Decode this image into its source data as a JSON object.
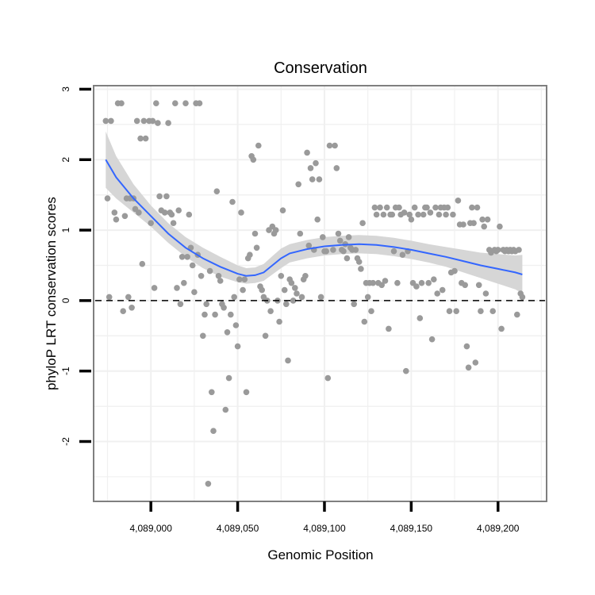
{
  "chart_data": {
    "type": "scatter",
    "title": "Conservation",
    "xlabel": "Genomic Position",
    "ylabel": "phyloP LRT conservation scores",
    "xlim": [
      4088967,
      4089228
    ],
    "ylim": [
      -2.85,
      3.05
    ],
    "x_ticks": [
      {
        "value": 4089000,
        "label": "4,089,000"
      },
      {
        "value": 4089050,
        "label": "4,089,050"
      },
      {
        "value": 4089100,
        "label": "4,089,100"
      },
      {
        "value": 4089150,
        "label": "4,089,150"
      },
      {
        "value": 4089200,
        "label": "4,089,200"
      }
    ],
    "y_ticks": [
      {
        "value": 3,
        "label": "3"
      },
      {
        "value": 2,
        "label": "2"
      },
      {
        "value": 1,
        "label": "1"
      },
      {
        "value": 0,
        "label": "0"
      },
      {
        "value": -1,
        "label": "-1"
      },
      {
        "value": -2,
        "label": "-2"
      }
    ],
    "grid": true,
    "reference_line": {
      "y": 0,
      "style": "dashed",
      "color": "#000000"
    },
    "colors": {
      "points": "#9a9a9a",
      "smooth_line": "#3366ff",
      "ribbon": "#d6d6d6",
      "panel_border": "#7f7f7f",
      "grid": "#f0f0f0"
    },
    "series": [
      {
        "name": "phyloP scores",
        "points": [
          [
            4088974,
            2.55
          ],
          [
            4088975,
            1.45
          ],
          [
            4088977,
            2.55
          ],
          [
            4088976,
            0.05
          ],
          [
            4088979,
            1.25
          ],
          [
            4088980,
            1.15
          ],
          [
            4088981,
            2.8
          ],
          [
            4088983,
            2.8
          ],
          [
            4088984,
            -0.15
          ],
          [
            4088985,
            1.2
          ],
          [
            4088986,
            1.45
          ],
          [
            4088987,
            0.05
          ],
          [
            4088988,
            1.45
          ],
          [
            4088989,
            -0.1
          ],
          [
            4088990,
            1.45
          ],
          [
            4088991,
            1.3
          ],
          [
            4088992,
            2.55
          ],
          [
            4088993,
            1.25
          ],
          [
            4088994,
            2.3
          ],
          [
            4088995,
            0.52
          ],
          [
            4088996,
            2.55
          ],
          [
            4088997,
            2.3
          ],
          [
            4088999,
            2.55
          ],
          [
            4089000,
            1.1
          ],
          [
            4089001,
            2.55
          ],
          [
            4089002,
            0.18
          ],
          [
            4089003,
            2.8
          ],
          [
            4089004,
            2.52
          ],
          [
            4089005,
            1.48
          ],
          [
            4089006,
            1.28
          ],
          [
            4089008,
            1.25
          ],
          [
            4089009,
            1.48
          ],
          [
            4089010,
            2.52
          ],
          [
            4089011,
            1.25
          ],
          [
            4089012,
            1.22
          ],
          [
            4089013,
            1.1
          ],
          [
            4089014,
            2.8
          ],
          [
            4089015,
            0.18
          ],
          [
            4089016,
            1.28
          ],
          [
            4089017,
            -0.05
          ],
          [
            4089018,
            0.62
          ],
          [
            4089019,
            0.25
          ],
          [
            4089020,
            2.8
          ],
          [
            4089021,
            0.62
          ],
          [
            4089022,
            1.22
          ],
          [
            4089023,
            0.75
          ],
          [
            4089024,
            0.5
          ],
          [
            4089025,
            0.12
          ],
          [
            4089026,
            2.8
          ],
          [
            4089027,
            0.65
          ],
          [
            4089028,
            2.8
          ],
          [
            4089029,
            0.35
          ],
          [
            4089030,
            -0.5
          ],
          [
            4089031,
            -0.2
          ],
          [
            4089032,
            -0.05
          ],
          [
            4089033,
            -2.6
          ],
          [
            4089034,
            0.42
          ],
          [
            4089035,
            -1.3
          ],
          [
            4089036,
            -1.85
          ],
          [
            4089037,
            -0.2
          ],
          [
            4089038,
            1.55
          ],
          [
            4089039,
            0.35
          ],
          [
            4089040,
            0.28
          ],
          [
            4089041,
            -0.05
          ],
          [
            4089042,
            -0.1
          ],
          [
            4089043,
            -1.55
          ],
          [
            4089044,
            -0.45
          ],
          [
            4089045,
            -1.1
          ],
          [
            4089046,
            -0.2
          ],
          [
            4089047,
            1.4
          ],
          [
            4089048,
            0.05
          ],
          [
            4089049,
            -0.35
          ],
          [
            4089050,
            -0.65
          ],
          [
            4089051,
            0.3
          ],
          [
            4089052,
            1.25
          ],
          [
            4089053,
            0.15
          ],
          [
            4089054,
            0.3
          ],
          [
            4089055,
            -1.3
          ],
          [
            4089056,
            0.6
          ],
          [
            4089057,
            0.65
          ],
          [
            4089058,
            2.05
          ],
          [
            4089059,
            2.0
          ],
          [
            4089060,
            0.95
          ],
          [
            4089061,
            0.75
          ],
          [
            4089062,
            2.2
          ],
          [
            4089063,
            0.2
          ],
          [
            4089064,
            0.15
          ],
          [
            4089065,
            0.05
          ],
          [
            4089066,
            -0.5
          ],
          [
            4089067,
            0.0
          ],
          [
            4089068,
            1.0
          ],
          [
            4089069,
            -0.15
          ],
          [
            4089070,
            1.05
          ],
          [
            4089071,
            0.95
          ],
          [
            4089072,
            1.0
          ],
          [
            4089073,
            0.0
          ],
          [
            4089074,
            -0.3
          ],
          [
            4089075,
            0.35
          ],
          [
            4089076,
            1.28
          ],
          [
            4089077,
            0.15
          ],
          [
            4089078,
            -0.05
          ],
          [
            4089079,
            -0.85
          ],
          [
            4089080,
            0.3
          ],
          [
            4089081,
            0.25
          ],
          [
            4089082,
            0.0
          ],
          [
            4089083,
            0.18
          ],
          [
            4089084,
            0.1
          ],
          [
            4089085,
            1.65
          ],
          [
            4089086,
            0.95
          ],
          [
            4089087,
            0.05
          ],
          [
            4089088,
            0.3
          ],
          [
            4089089,
            0.35
          ],
          [
            4089090,
            2.1
          ],
          [
            4089091,
            0.78
          ],
          [
            4089092,
            1.88
          ],
          [
            4089093,
            1.72
          ],
          [
            4089094,
            0.72
          ],
          [
            4089095,
            1.95
          ],
          [
            4089096,
            1.15
          ],
          [
            4089097,
            1.72
          ],
          [
            4089098,
            0.05
          ],
          [
            4089099,
            0.9
          ],
          [
            4089100,
            0.7
          ],
          [
            4089101,
            0.7
          ],
          [
            4089102,
            -1.1
          ],
          [
            4089103,
            2.2
          ],
          [
            4089105,
            0.72
          ],
          [
            4089106,
            2.2
          ],
          [
            4089107,
            1.88
          ],
          [
            4089108,
            0.95
          ],
          [
            4089109,
            0.85
          ],
          [
            4089110,
            0.72
          ],
          [
            4089111,
            0.7
          ],
          [
            4089112,
            0.8
          ],
          [
            4089113,
            0.6
          ],
          [
            4089114,
            0.9
          ],
          [
            4089115,
            0.75
          ],
          [
            4089116,
            0.72
          ],
          [
            4089117,
            -0.05
          ],
          [
            4089118,
            0.72
          ],
          [
            4089119,
            0.6
          ],
          [
            4089120,
            0.55
          ],
          [
            4089121,
            0.45
          ],
          [
            4089122,
            1.1
          ],
          [
            4089123,
            -0.3
          ],
          [
            4089124,
            0.25
          ],
          [
            4089125,
            0.05
          ],
          [
            4089126,
            0.25
          ],
          [
            4089127,
            -0.15
          ],
          [
            4089128,
            0.25
          ],
          [
            4089129,
            1.32
          ],
          [
            4089130,
            1.22
          ],
          [
            4089131,
            0.25
          ],
          [
            4089132,
            1.32
          ],
          [
            4089133,
            0.22
          ],
          [
            4089134,
            1.22
          ],
          [
            4089135,
            0.28
          ],
          [
            4089136,
            1.32
          ],
          [
            4089137,
            -0.4
          ],
          [
            4089138,
            1.22
          ],
          [
            4089139,
            1.22
          ],
          [
            4089140,
            0.7
          ],
          [
            4089141,
            1.32
          ],
          [
            4089142,
            0.25
          ],
          [
            4089143,
            1.32
          ],
          [
            4089144,
            1.22
          ],
          [
            4089145,
            0.65
          ],
          [
            4089146,
            1.25
          ],
          [
            4089147,
            -1.0
          ],
          [
            4089148,
            0.7
          ],
          [
            4089149,
            1.22
          ],
          [
            4089150,
            1.15
          ],
          [
            4089151,
            0.25
          ],
          [
            4089152,
            1.32
          ],
          [
            4089153,
            0.2
          ],
          [
            4089154,
            1.22
          ],
          [
            4089155,
            -0.25
          ],
          [
            4089156,
            0.25
          ],
          [
            4089157,
            1.22
          ],
          [
            4089158,
            1.32
          ],
          [
            4089159,
            1.32
          ],
          [
            4089160,
            0.25
          ],
          [
            4089161,
            1.25
          ],
          [
            4089162,
            -0.55
          ],
          [
            4089163,
            0.3
          ],
          [
            4089164,
            1.32
          ],
          [
            4089165,
            0.1
          ],
          [
            4089166,
            1.22
          ],
          [
            4089167,
            1.32
          ],
          [
            4089168,
            0.15
          ],
          [
            4089169,
            1.32
          ],
          [
            4089170,
            1.22
          ],
          [
            4089171,
            1.32
          ],
          [
            4089172,
            -0.15
          ],
          [
            4089173,
            0.4
          ],
          [
            4089174,
            1.22
          ],
          [
            4089175,
            0.42
          ],
          [
            4089176,
            -0.15
          ],
          [
            4089177,
            1.42
          ],
          [
            4089178,
            1.08
          ],
          [
            4089179,
            0.25
          ],
          [
            4089180,
            1.08
          ],
          [
            4089181,
            0.22
          ],
          [
            4089182,
            -0.65
          ],
          [
            4089183,
            -0.95
          ],
          [
            4089184,
            1.1
          ],
          [
            4089185,
            1.32
          ],
          [
            4089186,
            1.1
          ],
          [
            4089187,
            -0.88
          ],
          [
            4089188,
            1.32
          ],
          [
            4089189,
            0.22
          ],
          [
            4089190,
            -0.15
          ],
          [
            4089191,
            1.15
          ],
          [
            4089192,
            1.05
          ],
          [
            4089193,
            0.1
          ],
          [
            4089194,
            1.15
          ],
          [
            4089195,
            0.72
          ],
          [
            4089196,
            0.68
          ],
          [
            4089197,
            -0.15
          ],
          [
            4089198,
            0.72
          ],
          [
            4089199,
            0.7
          ],
          [
            4089200,
            0.72
          ],
          [
            4089201,
            1.05
          ],
          [
            4089202,
            -0.4
          ],
          [
            4089203,
            0.72
          ],
          [
            4089204,
            0.7
          ],
          [
            4089205,
            0.72
          ],
          [
            4089206,
            0.7
          ],
          [
            4089207,
            0.72
          ],
          [
            4089208,
            0.7
          ],
          [
            4089209,
            0.72
          ],
          [
            4089210,
            0.7
          ],
          [
            4089211,
            -0.2
          ],
          [
            4089212,
            0.72
          ],
          [
            4089213,
            0.1
          ],
          [
            4089214,
            0.05
          ]
        ]
      },
      {
        "name": "loess fit",
        "points": [
          [
            4088974,
            2.0
          ],
          [
            4088980,
            1.75
          ],
          [
            4088990,
            1.45
          ],
          [
            4089000,
            1.2
          ],
          [
            4089010,
            0.95
          ],
          [
            4089020,
            0.75
          ],
          [
            4089030,
            0.6
          ],
          [
            4089040,
            0.48
          ],
          [
            4089050,
            0.38
          ],
          [
            4089055,
            0.35
          ],
          [
            4089060,
            0.36
          ],
          [
            4089065,
            0.4
          ],
          [
            4089070,
            0.5
          ],
          [
            4089075,
            0.6
          ],
          [
            4089080,
            0.67
          ],
          [
            4089090,
            0.73
          ],
          [
            4089100,
            0.77
          ],
          [
            4089110,
            0.79
          ],
          [
            4089120,
            0.8
          ],
          [
            4089130,
            0.79
          ],
          [
            4089140,
            0.76
          ],
          [
            4089150,
            0.72
          ],
          [
            4089160,
            0.67
          ],
          [
            4089170,
            0.62
          ],
          [
            4089180,
            0.56
          ],
          [
            4089190,
            0.5
          ],
          [
            4089200,
            0.45
          ],
          [
            4089210,
            0.4
          ],
          [
            4089214,
            0.37
          ]
        ],
        "ci_upper": [
          2.4,
          2.05,
          1.65,
          1.35,
          1.1,
          0.9,
          0.75,
          0.62,
          0.5,
          0.46,
          0.47,
          0.52,
          0.63,
          0.74,
          0.8,
          0.86,
          0.9,
          0.92,
          0.93,
          0.92,
          0.89,
          0.85,
          0.8,
          0.76,
          0.72,
          0.68,
          0.66,
          0.64,
          0.65
        ],
        "ci_lower": [
          1.6,
          1.45,
          1.25,
          1.05,
          0.82,
          0.62,
          0.46,
          0.34,
          0.26,
          0.24,
          0.25,
          0.28,
          0.37,
          0.46,
          0.54,
          0.6,
          0.64,
          0.66,
          0.67,
          0.66,
          0.63,
          0.59,
          0.54,
          0.48,
          0.4,
          0.32,
          0.24,
          0.16,
          0.1
        ]
      }
    ]
  }
}
